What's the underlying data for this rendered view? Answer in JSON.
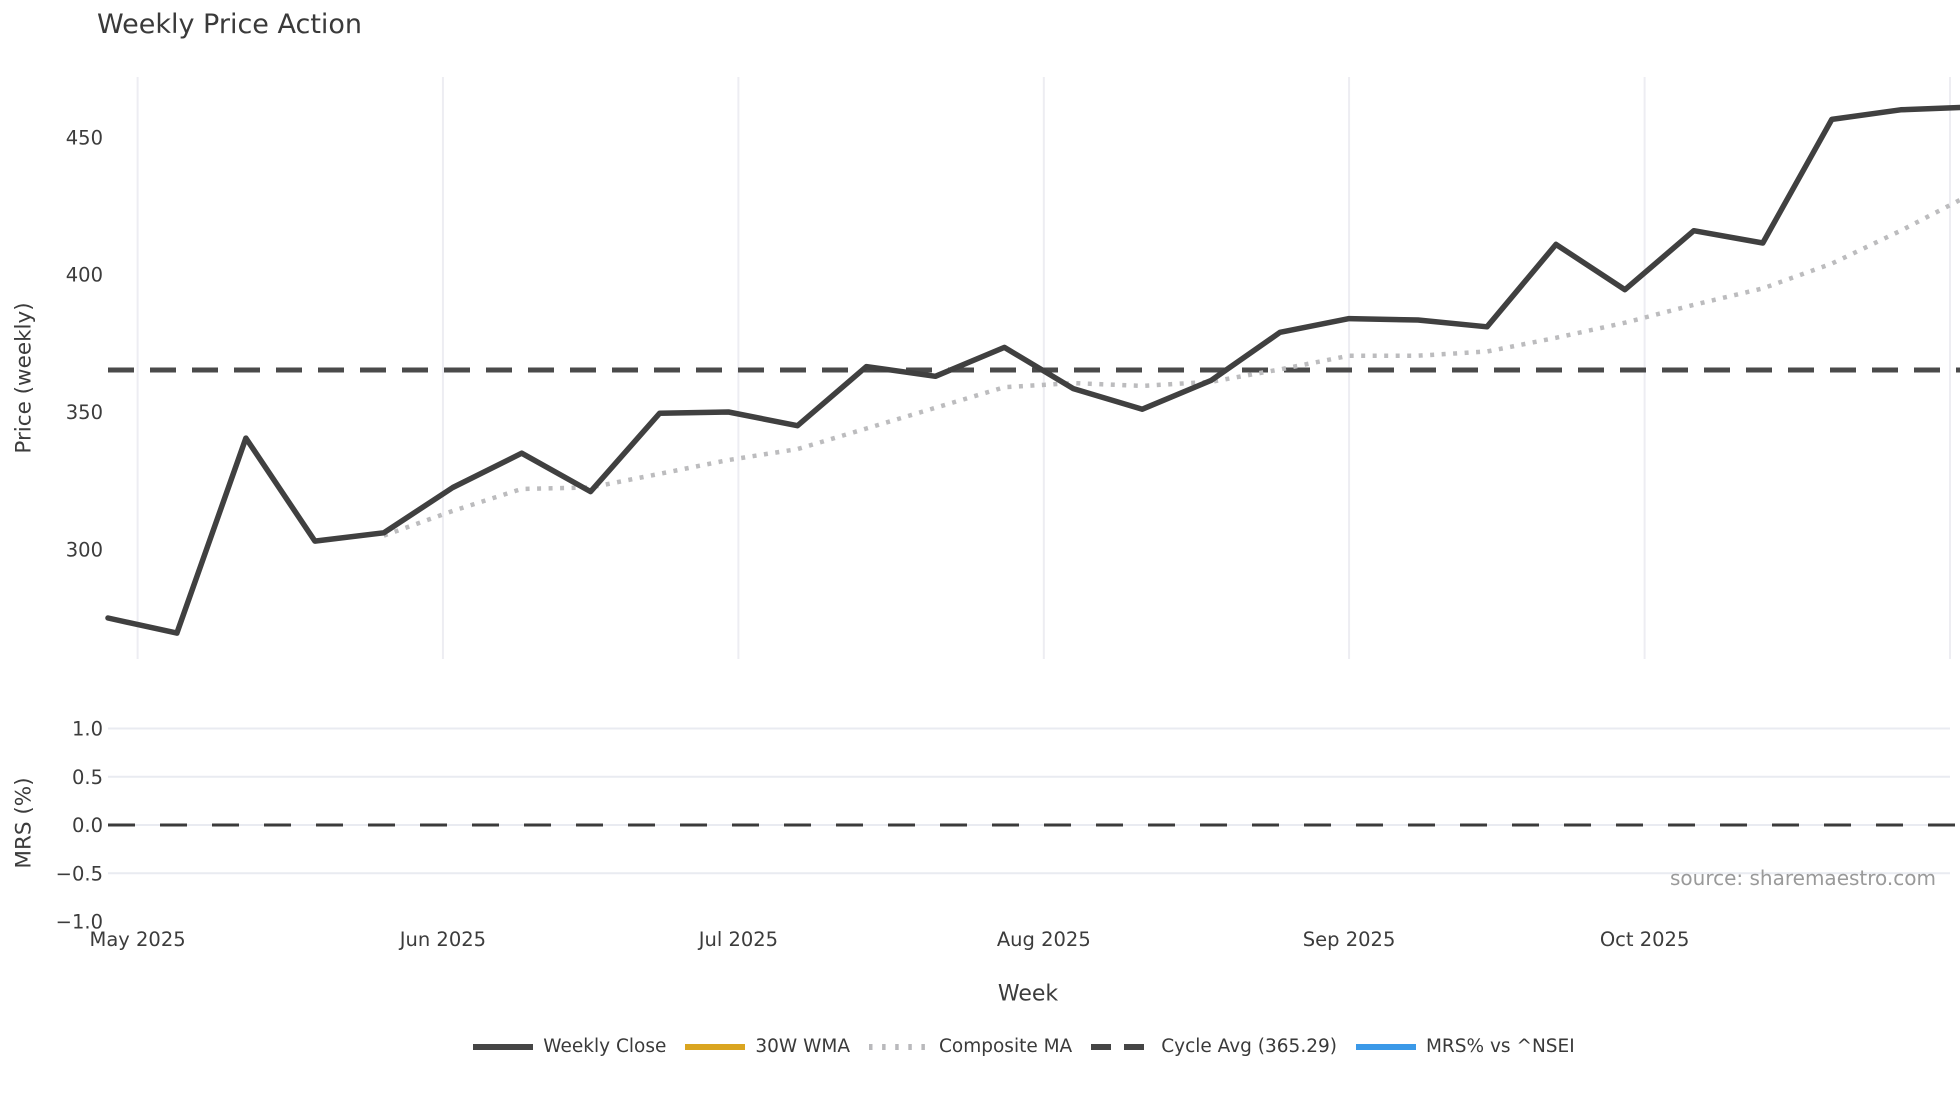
{
  "figure": {
    "title": "Weekly Price Action",
    "source_note": "source: sharemaestro.com"
  },
  "axes": {
    "xlabel": "Week",
    "price_ylabel": "Price (weekly)",
    "mrs_ylabel": "MRS (%)"
  },
  "legend": {
    "items": [
      {
        "label": "Weekly Close",
        "style": "solid",
        "color": "#454545"
      },
      {
        "label": "30W WMA",
        "style": "solid",
        "color": "#DAA520"
      },
      {
        "label": "Composite MA",
        "style": "dotted",
        "color": "#b9b9bc"
      },
      {
        "label": "Cycle Avg (365.29)",
        "style": "dashed",
        "color": "#454545"
      },
      {
        "label": "MRS% vs ^NSEI",
        "style": "solid",
        "color": "#3b99e8"
      }
    ]
  },
  "chart_data": [
    {
      "type": "line",
      "panel": "price",
      "title": "Weekly Price Action",
      "xlabel": "Week",
      "ylabel": "Price (weekly)",
      "ylim": [
        260,
        471
      ],
      "grid": "vertical-months",
      "x_weeks": [
        "2025-04-28",
        "2025-05-05",
        "2025-05-12",
        "2025-05-19",
        "2025-05-26",
        "2025-06-02",
        "2025-06-09",
        "2025-06-16",
        "2025-06-23",
        "2025-06-30",
        "2025-07-07",
        "2025-07-14",
        "2025-07-21",
        "2025-07-28",
        "2025-08-04",
        "2025-08-11",
        "2025-08-18",
        "2025-08-25",
        "2025-09-01",
        "2025-09-08",
        "2025-09-15",
        "2025-09-22",
        "2025-09-29",
        "2025-10-06",
        "2025-10-13",
        "2025-10-20",
        "2025-10-27",
        "2025-11-03"
      ],
      "month_ticks": [
        {
          "label": "May 2025",
          "date": "2025-05-01"
        },
        {
          "label": "Jun 2025",
          "date": "2025-06-01"
        },
        {
          "label": "Jul 2025",
          "date": "2025-07-01"
        },
        {
          "label": "Aug 2025",
          "date": "2025-08-01"
        },
        {
          "label": "Sep 2025",
          "date": "2025-09-01"
        },
        {
          "label": "Oct 2025",
          "date": "2025-10-01"
        },
        {
          "label": "",
          "date": "2025-11-01"
        }
      ],
      "price_ticks": [
        {
          "label": "450",
          "value": 450
        },
        {
          "label": "400",
          "value": 400
        },
        {
          "label": "350",
          "value": 350
        },
        {
          "label": "300",
          "value": 300
        }
      ],
      "series": [
        {
          "name": "Weekly Close",
          "style": "solid",
          "color": "#404040",
          "width": 5.5,
          "visible": true,
          "values": [
            275,
            269.5,
            340.5,
            303,
            306,
            322.5,
            335,
            321,
            349.5,
            350,
            345,
            366.5,
            363,
            373.5,
            358.5,
            351,
            361.5,
            379,
            384,
            383.5,
            381,
            411,
            394.5,
            416,
            411.5,
            456.5,
            460,
            461
          ]
        },
        {
          "name": "30W WMA",
          "style": "solid",
          "color": "#DAA520",
          "width": 5.5,
          "visible": false,
          "values": []
        },
        {
          "name": "Composite MA",
          "style": "dotted",
          "color": "#bcbcbe",
          "width": 4.5,
          "visible": true,
          "start_index": 4,
          "values": [
            305,
            314,
            322,
            322.5,
            327.5,
            332.5,
            336.5,
            344,
            351.5,
            359,
            360.5,
            359.5,
            361,
            365.5,
            370.5,
            370.5,
            372,
            377,
            382.5,
            389,
            395,
            404,
            416,
            429
          ]
        },
        {
          "name": "Cycle Avg",
          "style": "dashed",
          "color": "#4a4a4a",
          "width": 5,
          "visible": true,
          "constant": 365.29
        }
      ]
    },
    {
      "type": "line",
      "panel": "mrs",
      "ylabel": "MRS (%)",
      "ylim": [
        -1.2,
        1.2
      ],
      "grid": "horizontal",
      "grid_values": [
        1.0,
        0.5,
        0.0,
        -0.5
      ],
      "mrs_ticks": [
        {
          "label": "1.0",
          "value": 1.0
        },
        {
          "label": "0.5",
          "value": 0.5
        },
        {
          "label": "0.0",
          "value": 0.0
        },
        {
          "label": "−0.5",
          "value": -0.5
        },
        {
          "label": "−1.0",
          "value": -1.0
        }
      ],
      "zero_line": {
        "value": 0.0,
        "style": "dashed",
        "color": "#3b3b3b"
      },
      "series": [
        {
          "name": "MRS% vs ^NSEI",
          "style": "solid",
          "color": "#3b99e8",
          "visible": false,
          "values": []
        }
      ]
    }
  ]
}
